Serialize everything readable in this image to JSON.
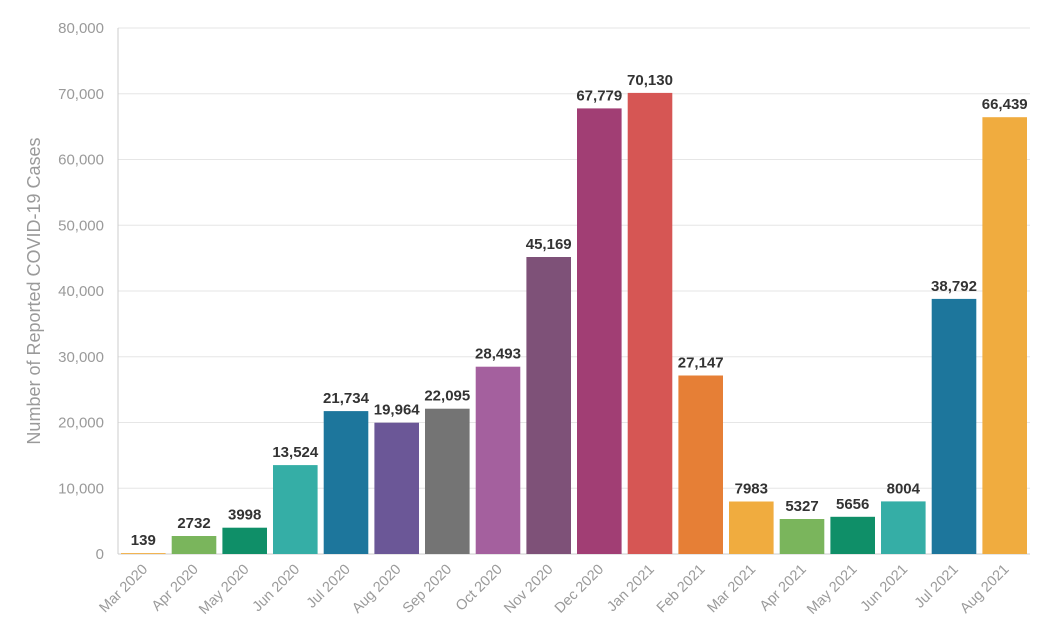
{
  "chart_data": {
    "type": "bar",
    "ylabel": "Number of Reported COVID-19 Cases",
    "ylim": [
      0,
      80000
    ],
    "yticks": [
      0,
      10000,
      20000,
      30000,
      40000,
      50000,
      60000,
      70000,
      80000
    ],
    "ytick_labels": [
      "0",
      "10,000",
      "20,000",
      "30,000",
      "40,000",
      "50,000",
      "60,000",
      "70,000",
      "80,000"
    ],
    "grid": true,
    "categories": [
      "Mar 2020",
      "Apr 2020",
      "May 2020",
      "Jun 2020",
      "Jul 2020",
      "Aug 2020",
      "Sep 2020",
      "Oct 2020",
      "Nov 2020",
      "Dec 2020",
      "Jan 2021",
      "Feb 2021",
      "Mar 2021",
      "Apr 2021",
      "May 2021",
      "Jun 2021",
      "Jul 2021",
      "Aug 2021"
    ],
    "values": [
      139,
      2732,
      3998,
      13524,
      21734,
      19964,
      22095,
      28493,
      45169,
      67779,
      70130,
      27147,
      7983,
      5327,
      5656,
      8004,
      38792,
      66439
    ],
    "value_labels": [
      "139",
      "2732",
      "3998",
      "13,524",
      "21,734",
      "19,964",
      "22,095",
      "28,493",
      "45,169",
      "67,779",
      "70,130",
      "27,147",
      "7983",
      "5327",
      "5656",
      "8004",
      "38,792",
      "66,439"
    ],
    "colors": [
      "#f0ac3f",
      "#7ab55c",
      "#0f8f68",
      "#35aea6",
      "#1d769c",
      "#6b5797",
      "#747474",
      "#a4609e",
      "#7e5178",
      "#a13e74",
      "#d65654",
      "#e67f36",
      "#f0ac3f",
      "#7ab55c",
      "#0f8f68",
      "#35aea6",
      "#1d769c",
      "#f0ac3f"
    ]
  }
}
